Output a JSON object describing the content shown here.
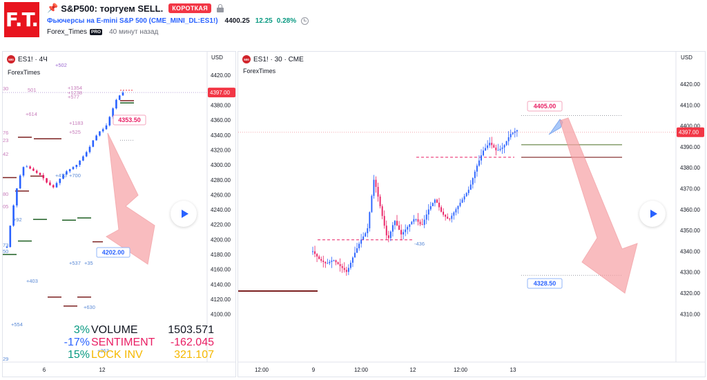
{
  "header": {
    "logo_text": "F.T.",
    "title": "S&P500: торгуем SELL.",
    "badge": "КОРОТКАЯ",
    "symbol_link": "Фьючерсы на E-mini S&P 500 (CME_MINI_DL:ES1!)",
    "price": "4400.25",
    "change": "12.25",
    "change_pct": "0.28%",
    "author": "Forex_Times",
    "pro_badge": "PRO",
    "time_ago": "40 минут назад"
  },
  "colors": {
    "up_candle": "#2962ff",
    "down_candle": "#e91e63",
    "arrow_fill": "#f7a1a5",
    "target_label": "#2962ff",
    "entry_label": "#e91e63",
    "price_marker": "#f23645"
  },
  "left_pane": {
    "symbol": "ES1! · 4Ч",
    "author": "ForexTimes",
    "unit": "USD",
    "y_ticks": [
      "4420.00",
      "4400.00",
      "4380.00",
      "4360.00",
      "4340.00",
      "4320.00",
      "4300.00",
      "4280.00",
      "4260.00",
      "4240.00",
      "4220.00",
      "4200.00",
      "4180.00",
      "4160.00",
      "4140.00",
      "4120.00",
      "4100.00"
    ],
    "x_ticks": [
      "6",
      "12"
    ],
    "current_price": "4397.00",
    "entry_label": "4353.50",
    "target_label": "4202.00",
    "annotations": [
      "+502",
      "+1354",
      "+1238",
      "+577",
      "+614",
      "+1183",
      "+525",
      "+473",
      "+700",
      "+92",
      "+537",
      "+35",
      "+403",
      "+630",
      "+554",
      "+363",
      "30",
      "76",
      "23",
      "42",
      "80",
      "05",
      "73",
      "50",
      "29",
      "501"
    ],
    "stats": [
      {
        "pct": "3%",
        "label": "VOLUME",
        "value": "1503.571",
        "pct_color": "#089981",
        "label_color": "#131722",
        "value_color": "#131722"
      },
      {
        "pct": "-17%",
        "label": "SENTIMENT",
        "value": "-162.045",
        "pct_color": "#2962ff",
        "label_color": "#e91e63",
        "value_color": "#e91e63"
      },
      {
        "pct": "15%",
        "label": "LOCK INV",
        "value": "321.107",
        "pct_color": "#089981",
        "label_color": "#f5b800",
        "value_color": "#f5b800"
      }
    ]
  },
  "right_pane": {
    "symbol": "ES1! · 30 · CME",
    "author": "ForexTimes",
    "unit": "USD",
    "y_ticks": [
      "4420.00",
      "4410.00",
      "4400.00",
      "4390.00",
      "4380.00",
      "4370.00",
      "4360.00",
      "4350.00",
      "4340.00",
      "4330.00",
      "4320.00",
      "4310.00"
    ],
    "x_ticks": [
      "12:00",
      "9",
      "12:00",
      "12",
      "12:00",
      "13"
    ],
    "current_price": "4397.00",
    "entry_label": "4405.00",
    "target_label": "4328.50",
    "annotations": [
      "-436"
    ]
  }
}
